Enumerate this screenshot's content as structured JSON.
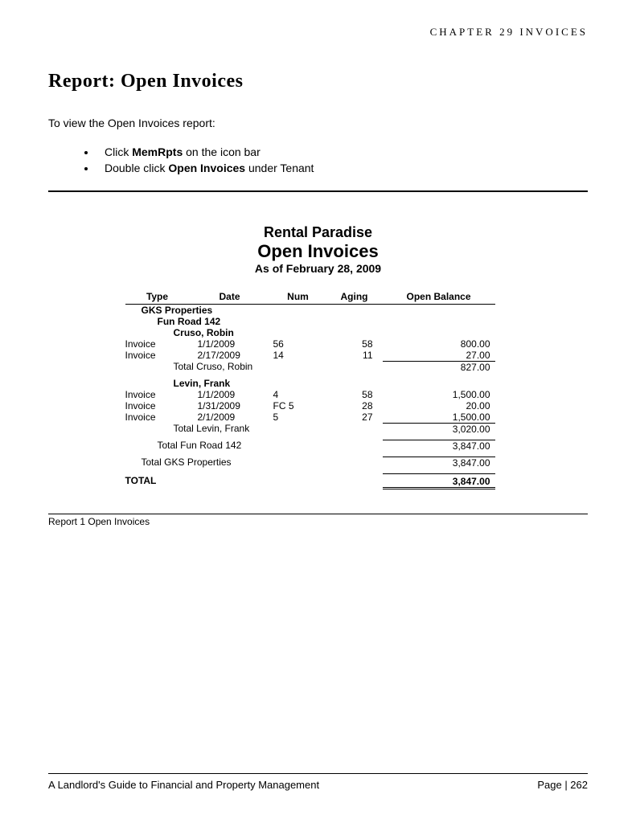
{
  "chapter_header": "CHAPTER 29  INVOICES",
  "page_title": "Report: Open Invoices",
  "intro_text": "To view the Open Invoices report:",
  "bullets": [
    {
      "pre": "Click ",
      "bold": "MemRpts",
      "post": " on the icon bar"
    },
    {
      "pre": "Double click ",
      "bold": "Open Invoices",
      "post": " under Tenant"
    }
  ],
  "report": {
    "company": "Rental Paradise",
    "name": "Open Invoices",
    "as_of": "As of February 28, 2009",
    "columns": [
      "Type",
      "Date",
      "Num",
      "Aging",
      "Open Balance"
    ],
    "group1": "GKS Properties",
    "group2": "Fun Road 142",
    "tenant1": {
      "name": "Cruso, Robin",
      "rows": [
        {
          "type": "Invoice",
          "date": "1/1/2009",
          "num": "56",
          "aging": "58",
          "balance": "800.00"
        },
        {
          "type": "Invoice",
          "date": "2/17/2009",
          "num": "14",
          "aging": "11",
          "balance": "27.00"
        }
      ],
      "subtotal_label": "Total Cruso, Robin",
      "subtotal": "827.00"
    },
    "tenant2": {
      "name": "Levin, Frank",
      "rows": [
        {
          "type": "Invoice",
          "date": "1/1/2009",
          "num": "4",
          "aging": "58",
          "balance": "1,500.00"
        },
        {
          "type": "Invoice",
          "date": "1/31/2009",
          "num": "FC 5",
          "aging": "28",
          "balance": "20.00"
        },
        {
          "type": "Invoice",
          "date": "2/1/2009",
          "num": "5",
          "aging": "27",
          "balance": "1,500.00"
        }
      ],
      "subtotal_label": "Total Levin, Frank",
      "subtotal": "3,020.00"
    },
    "group2_total_label": "Total Fun Road 142",
    "group2_total": "3,847.00",
    "group1_total_label": "Total GKS Properties",
    "group1_total": "3,847.00",
    "grand_label": "TOTAL",
    "grand_total": "3,847.00"
  },
  "caption": "Report 1 Open Invoices",
  "footer": {
    "book_title": "A Landlord's Guide to Financial and Property Management",
    "page_label": "Page | 262"
  }
}
